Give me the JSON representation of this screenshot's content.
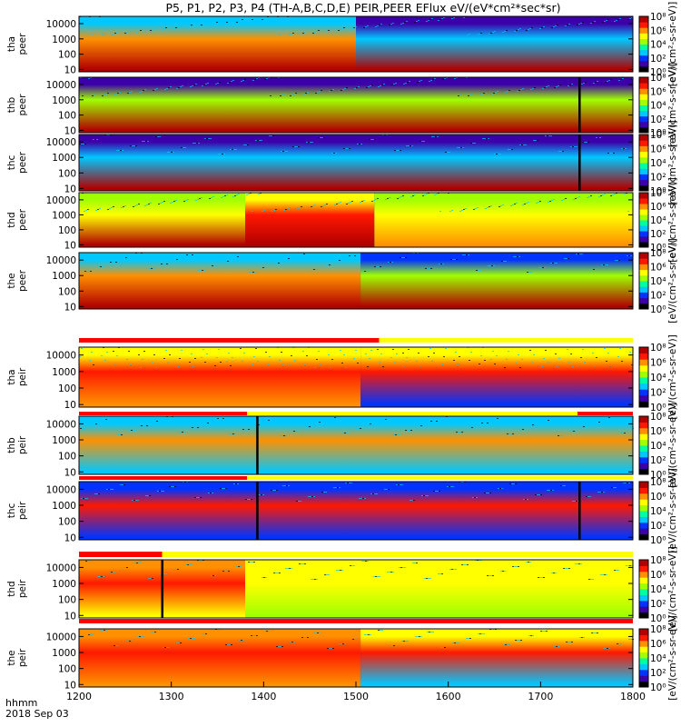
{
  "chart_data": {
    "type": "heatmap",
    "title": "P5, P1, P2, P3, P4 (TH-A,B,C,D,E) PEIR,PEER EFlux eV/(eV*cm²*sec*sr)",
    "x_axis": {
      "time_label": "hhmm",
      "date_label": "2018 Sep 03",
      "range": [
        1200,
        1800
      ],
      "ticks": [
        "1200",
        "1300",
        "1400",
        "1500",
        "1600",
        "1700",
        "1800"
      ]
    },
    "y_axis": {
      "scale": "log",
      "range_eV": [
        7,
        30000
      ],
      "ticks": [
        "10000",
        "1000",
        "100",
        "10"
      ]
    },
    "colorbar": {
      "label": "[eV/(cm²-s-sr-eV)]",
      "tick_labels": [
        "10⁸",
        "10⁶",
        "10⁴",
        "10²",
        "10⁰"
      ],
      "tick_values_log10": [
        8,
        6,
        4,
        2,
        0
      ]
    },
    "panels": [
      {
        "probe": "tha",
        "species": "peer",
        "bands": [
          {
            "from": 1200,
            "to": 1500,
            "eflux_log10_at_10eV": 8,
            "eflux_log10_at_1000eV": 6,
            "eflux_log10_at_10000eV": 3
          },
          {
            "from": 1500,
            "to": 1800,
            "eflux_log10_at_10eV": 8,
            "eflux_log10_at_1000eV": 3,
            "eflux_log10_at_10000eV": 1
          }
        ],
        "spikes": []
      },
      {
        "probe": "thb",
        "species": "peer",
        "bands": [
          {
            "from": 1200,
            "to": 1800,
            "eflux_log10_at_10eV": 8,
            "eflux_log10_at_1000eV": 4,
            "eflux_log10_at_10000eV": 1
          }
        ],
        "spikes": [
          1742
        ]
      },
      {
        "probe": "thc",
        "species": "peer",
        "bands": [
          {
            "from": 1200,
            "to": 1800,
            "eflux_log10_at_10eV": 8,
            "eflux_log10_at_1000eV": 3,
            "eflux_log10_at_10000eV": 1
          }
        ],
        "spikes": [
          1742
        ]
      },
      {
        "probe": "thd",
        "species": "peer",
        "bands": [
          {
            "from": 1200,
            "to": 1380,
            "eflux_log10_at_10eV": 8,
            "eflux_log10_at_1000eV": 5,
            "eflux_log10_at_10000eV": 4
          },
          {
            "from": 1380,
            "to": 1520,
            "eflux_log10_at_10eV": 8,
            "eflux_log10_at_1000eV": 7,
            "eflux_log10_at_10000eV": 5
          },
          {
            "from": 1520,
            "to": 1800,
            "eflux_log10_at_10eV": 6,
            "eflux_log10_at_1000eV": 5,
            "eflux_log10_at_10000eV": 4
          }
        ],
        "spikes": []
      },
      {
        "probe": "the",
        "species": "peer",
        "bands": [
          {
            "from": 1200,
            "to": 1505,
            "eflux_log10_at_10eV": 8,
            "eflux_log10_at_1000eV": 6,
            "eflux_log10_at_10000eV": 3
          },
          {
            "from": 1505,
            "to": 1800,
            "eflux_log10_at_10eV": 8,
            "eflux_log10_at_1000eV": 4,
            "eflux_log10_at_10000eV": 2
          }
        ],
        "spikes": []
      },
      {
        "probe": "tha",
        "species": "peir",
        "bands": [
          {
            "from": 1200,
            "to": 1505,
            "eflux_log10_at_10eV": 6,
            "eflux_log10_at_1000eV": 7,
            "eflux_log10_at_10000eV": 5
          },
          {
            "from": 1505,
            "to": 1800,
            "eflux_log10_at_10eV": 2,
            "eflux_log10_at_1000eV": 7,
            "eflux_log10_at_10000eV": 5
          }
        ],
        "spikes": []
      },
      {
        "probe": "thb",
        "species": "peir",
        "bands": [
          {
            "from": 1200,
            "to": 1800,
            "eflux_log10_at_10eV": 3,
            "eflux_log10_at_1000eV": 6,
            "eflux_log10_at_10000eV": 3
          }
        ],
        "spikes": [
          1393
        ]
      },
      {
        "probe": "thc",
        "species": "peir",
        "bands": [
          {
            "from": 1200,
            "to": 1800,
            "eflux_log10_at_10eV": 2,
            "eflux_log10_at_1000eV": 7,
            "eflux_log10_at_10000eV": 2
          }
        ],
        "spikes": [
          1393,
          1742
        ]
      },
      {
        "probe": "thd",
        "species": "peir",
        "bands": [
          {
            "from": 1200,
            "to": 1380,
            "eflux_log10_at_10eV": 5,
            "eflux_log10_at_1000eV": 7,
            "eflux_log10_at_10000eV": 6
          },
          {
            "from": 1380,
            "to": 1800,
            "eflux_log10_at_10eV": 4,
            "eflux_log10_at_1000eV": 5,
            "eflux_log10_at_10000eV": 5
          }
        ],
        "spikes": [
          1290
        ]
      },
      {
        "probe": "the",
        "species": "peir",
        "bands": [
          {
            "from": 1200,
            "to": 1505,
            "eflux_log10_at_10eV": 6,
            "eflux_log10_at_1000eV": 7,
            "eflux_log10_at_10000eV": 6
          },
          {
            "from": 1505,
            "to": 1800,
            "eflux_log10_at_10eV": 3,
            "eflux_log10_at_1000eV": 7,
            "eflux_log10_at_10000eV": 5
          }
        ],
        "spikes": []
      }
    ],
    "mode_bars": [
      {
        "after_panel": 4,
        "segments": [
          {
            "from": 1200,
            "to": 1525,
            "color": "#ff0000"
          }
        ]
      },
      {
        "after_panel": 5,
        "segments": [
          {
            "from": 1200,
            "to": 1382,
            "color": "#ff0000"
          },
          {
            "from": 1740,
            "to": 1800,
            "color": "#ff0000"
          }
        ]
      },
      {
        "after_panel": 6,
        "segments": [
          {
            "from": 1200,
            "to": 1382,
            "color": "#ff0000"
          }
        ]
      },
      {
        "after_panel": 7,
        "segments": [
          {
            "from": 1200,
            "to": 1290,
            "color": "#ff0000"
          }
        ]
      },
      {
        "after_panel": 8,
        "segments": [
          {
            "from": 1200,
            "to": 1800,
            "color": "#ff0000"
          }
        ]
      }
    ],
    "colors": {
      "scale": [
        "#000000",
        "#3b00a8",
        "#0033ff",
        "#00c8ff",
        "#00ffa0",
        "#a0ff00",
        "#ffff00",
        "#ff9000",
        "#ff1800",
        "#b00000"
      ]
    }
  }
}
